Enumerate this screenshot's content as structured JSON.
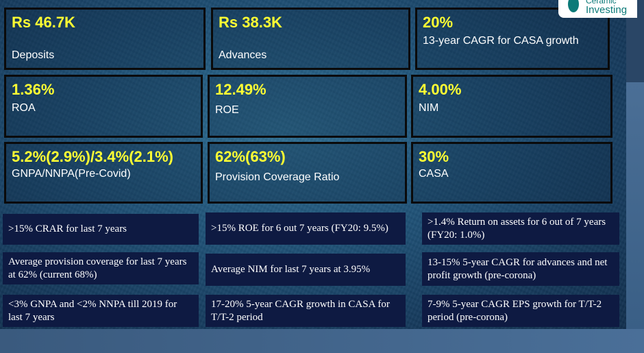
{
  "logo": {
    "line1": "Ceramic",
    "line2": "Investing"
  },
  "metrics": [
    {
      "value": "Rs 46.7K",
      "label": "Deposits"
    },
    {
      "value": "Rs 38.3K",
      "label": "Advances"
    },
    {
      "value": "20%",
      "label": "13-year CAGR for CASA growth"
    },
    {
      "value": "1.36%",
      "label": "ROA"
    },
    {
      "value": "12.49%",
      "label": "ROE"
    },
    {
      "value": "4.00%",
      "label": "NIM"
    },
    {
      "value": "5.2%(2.9%)/3.4%(2.1%)",
      "label": "GNPA/NNPA(Pre-Covid)"
    },
    {
      "value": "62%(63%)",
      "label": "Provision Coverage Ratio"
    },
    {
      "value": "30%",
      "label": "CASA"
    }
  ],
  "notes": [
    ">15% CRAR for last 7 years",
    ">15% ROE for 6 out 7 years (FY20: 9.5%)",
    ">1.4% Return on assets for 6 out of 7 years (FY20: 1.0%)",
    "Average provision coverage for last 7 years at 62% (current 68%)",
    "Average NIM for last 7 years at 3.95%",
    "13-15% 5-year CAGR for advances and net profit growth  (pre-corona)",
    "<3% GNPA and <2% NNPA till 2019 for last 7 years",
    "17-20% 5-year CAGR growth in CASA for T/T-2 period",
    "7-9% 5-year CAGR EPS growth for T/T-2 period (pre-corona)"
  ]
}
